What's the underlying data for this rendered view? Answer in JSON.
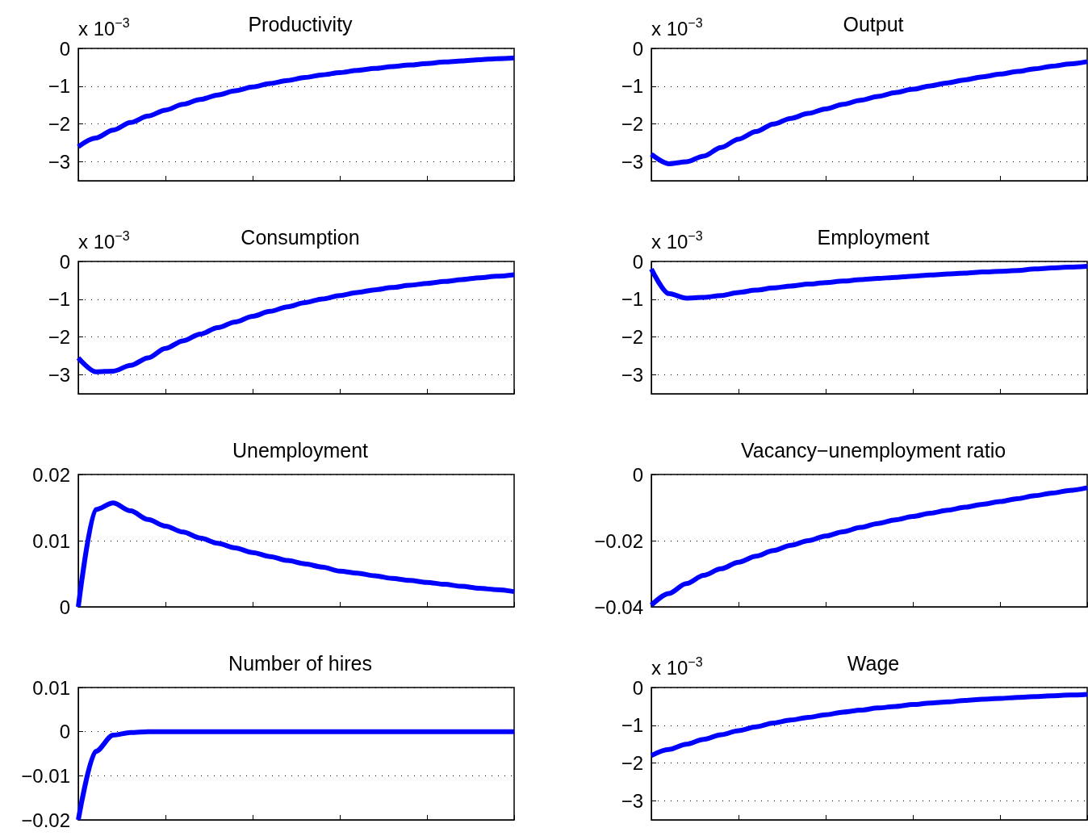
{
  "chart_data": [
    {
      "type": "line",
      "title": "Productivity",
      "annotations": [
        "x 10$^{−3}$"
      ],
      "categories": [
        null,
        null,
        null,
        null,
        null,
        null,
        null,
        null,
        null,
        null,
        null,
        null,
        null,
        null,
        null,
        null,
        null,
        null,
        null,
        null,
        null,
        null,
        null,
        null,
        null,
        null
      ],
      "series": [
        {
          "color": "#0000ff",
          "values": [
            -2.6,
            -2.37,
            -2.16,
            -1.96,
            -1.79,
            -1.63,
            -1.48,
            -1.35,
            -1.23,
            -1.12,
            -1.02,
            -0.93,
            -0.85,
            -0.77,
            -0.7,
            -0.64,
            -0.58,
            -0.53,
            -0.48,
            -0.44,
            -0.4,
            -0.36,
            -0.33,
            -0.3,
            -0.27,
            -0.25
          ]
        }
      ],
      "ylim": [
        -3.5,
        0
      ],
      "yticks": [
        {
          "value": -3,
          "label": "−3"
        },
        {
          "value": -2,
          "label": "−2"
        },
        {
          "value": -1,
          "label": "−1"
        },
        0
      ],
      "grid": "y",
      "tick_labels": "y",
      "marker": "none",
      "line_style": "solid"
    },
    {
      "type": "line",
      "title": "Output",
      "annotations": [
        "x 10$^{−3}$"
      ],
      "categories": [
        null,
        null,
        null,
        null,
        null,
        null,
        null,
        null,
        null,
        null,
        null,
        null,
        null,
        null,
        null,
        null,
        null,
        null,
        null,
        null,
        null,
        null,
        null,
        null,
        null,
        null
      ],
      "series": [
        {
          "color": "#0000ff",
          "values": [
            -2.8,
            -3.05,
            -3.0,
            -2.85,
            -2.62,
            -2.4,
            -2.2,
            -2.0,
            -1.85,
            -1.72,
            -1.6,
            -1.48,
            -1.37,
            -1.27,
            -1.17,
            -1.08,
            -0.99,
            -0.91,
            -0.83,
            -0.75,
            -0.68,
            -0.61,
            -0.54,
            -0.47,
            -0.41,
            -0.35
          ]
        }
      ],
      "ylim": [
        -3.5,
        0
      ],
      "yticks": [
        {
          "value": -3,
          "label": "−3"
        },
        {
          "value": -2,
          "label": "−2"
        },
        {
          "value": -1,
          "label": "−1"
        },
        0
      ],
      "grid": "y",
      "tick_labels": "y",
      "marker": "none",
      "line_style": "solid"
    },
    {
      "type": "line",
      "title": "Consumption",
      "annotations": [
        "x 10$^{−3}$"
      ],
      "categories": [
        null,
        null,
        null,
        null,
        null,
        null,
        null,
        null,
        null,
        null,
        null,
        null,
        null,
        null,
        null,
        null,
        null,
        null,
        null,
        null,
        null,
        null,
        null,
        null,
        null,
        null
      ],
      "series": [
        {
          "color": "#0000ff",
          "values": [
            -2.55,
            -2.92,
            -2.9,
            -2.75,
            -2.55,
            -2.3,
            -2.1,
            -1.92,
            -1.75,
            -1.6,
            -1.45,
            -1.32,
            -1.2,
            -1.09,
            -0.99,
            -0.9,
            -0.82,
            -0.75,
            -0.69,
            -0.63,
            -0.58,
            -0.53,
            -0.48,
            -0.43,
            -0.39,
            -0.35
          ]
        }
      ],
      "ylim": [
        -3.5,
        0
      ],
      "yticks": [
        {
          "value": -3,
          "label": "−3"
        },
        {
          "value": -2,
          "label": "−2"
        },
        {
          "value": -1,
          "label": "−1"
        },
        0
      ],
      "grid": "y",
      "tick_labels": "y",
      "marker": "none",
      "line_style": "solid"
    },
    {
      "type": "line",
      "title": "Employment",
      "annotations": [
        "x 10$^{−3}$"
      ],
      "categories": [
        null,
        null,
        null,
        null,
        null,
        null,
        null,
        null,
        null,
        null,
        null,
        null,
        null,
        null,
        null,
        null,
        null,
        null,
        null,
        null,
        null,
        null,
        null,
        null,
        null,
        null
      ],
      "series": [
        {
          "color": "#0000ff",
          "values": [
            -0.2,
            -0.85,
            -0.97,
            -0.95,
            -0.9,
            -0.82,
            -0.76,
            -0.7,
            -0.65,
            -0.6,
            -0.56,
            -0.52,
            -0.48,
            -0.45,
            -0.42,
            -0.39,
            -0.36,
            -0.33,
            -0.31,
            -0.28,
            -0.26,
            -0.24,
            -0.2,
            -0.17,
            -0.15,
            -0.13
          ]
        }
      ],
      "ylim": [
        -3.5,
        0
      ],
      "yticks": [
        {
          "value": -3,
          "label": "−3"
        },
        {
          "value": -2,
          "label": "−2"
        },
        {
          "value": -1,
          "label": "−1"
        },
        0
      ],
      "grid": "y",
      "tick_labels": "y",
      "marker": "none",
      "line_style": "solid"
    },
    {
      "type": "line",
      "title": "Unemployment",
      "categories": [
        null,
        null,
        null,
        null,
        null,
        null,
        null,
        null,
        null,
        null,
        null,
        null,
        null,
        null,
        null,
        null,
        null,
        null,
        null,
        null,
        null,
        null,
        null,
        null,
        null,
        null
      ],
      "series": [
        {
          "color": "#0000ff",
          "values": [
            0,
            0.0147,
            0.0157,
            0.0145,
            0.0132,
            0.0122,
            0.0113,
            0.0104,
            0.0096,
            0.0089,
            0.0082,
            0.0076,
            0.007,
            0.0065,
            0.006,
            0.0054,
            0.0051,
            0.0047,
            0.0043,
            0.004,
            0.0037,
            0.0034,
            0.0031,
            0.0028,
            0.0026,
            0.0023
          ]
        }
      ],
      "ylim": [
        0,
        0.02
      ],
      "yticks": [
        0,
        0.01,
        0.02
      ],
      "grid": "y",
      "tick_labels": "y",
      "marker": "none",
      "line_style": "solid"
    },
    {
      "type": "line",
      "title": "Vacancy−unemployment ratio",
      "categories": [
        null,
        null,
        null,
        null,
        null,
        null,
        null,
        null,
        null,
        null,
        null,
        null,
        null,
        null,
        null,
        null,
        null,
        null,
        null,
        null,
        null,
        null,
        null,
        null,
        null,
        null
      ],
      "series": [
        {
          "color": "#0000ff",
          "values": [
            -0.0395,
            -0.036,
            -0.033,
            -0.0305,
            -0.0285,
            -0.0265,
            -0.0247,
            -0.023,
            -0.0214,
            -0.02,
            -0.0186,
            -0.0173,
            -0.016,
            -0.0148,
            -0.0137,
            -0.0127,
            -0.0117,
            -0.0108,
            -0.0099,
            -0.009,
            -0.0082,
            -0.0073,
            -0.0064,
            -0.0056,
            -0.0048,
            -0.004
          ]
        }
      ],
      "ylim": [
        -0.04,
        0
      ],
      "yticks": [
        {
          "value": -0.04,
          "label": "−0.04"
        },
        {
          "value": -0.02,
          "label": "−0.02"
        },
        0
      ],
      "grid": "y",
      "tick_labels": "y",
      "marker": "none",
      "line_style": "solid"
    },
    {
      "type": "line",
      "title": "Number of hires",
      "categories": [
        null,
        null,
        null,
        null,
        null,
        null,
        null,
        null,
        null,
        null,
        null,
        null,
        null,
        null,
        null,
        null,
        null,
        null,
        null,
        null,
        null,
        null,
        null,
        null,
        null,
        null
      ],
      "series": [
        {
          "color": "#0000ff",
          "values": [
            -0.02,
            -0.0045,
            -0.0008,
            -0.0002,
            0,
            0,
            0,
            0,
            0,
            0,
            0,
            0,
            0,
            0,
            0,
            0,
            0,
            0,
            0,
            0,
            0,
            0,
            0,
            0,
            0,
            0
          ]
        }
      ],
      "ylim": [
        -0.02,
        0.01
      ],
      "yticks": [
        {
          "value": -0.02,
          "label": "−0.02"
        },
        {
          "value": -0.01,
          "label": "−0.01"
        },
        0,
        0.01
      ],
      "grid": "y",
      "tick_labels": "y",
      "marker": "none",
      "line_style": "solid"
    },
    {
      "type": "line",
      "title": "Wage",
      "annotations": [
        "x 10$^{−3}$"
      ],
      "categories": [
        null,
        null,
        null,
        null,
        null,
        null,
        null,
        null,
        null,
        null,
        null,
        null,
        null,
        null,
        null,
        null,
        null,
        null,
        null,
        null,
        null,
        null,
        null,
        null,
        null,
        null
      ],
      "series": [
        {
          "color": "#0000ff",
          "values": [
            -1.8,
            -1.64,
            -1.5,
            -1.37,
            -1.25,
            -1.14,
            -1.04,
            -0.94,
            -0.86,
            -0.79,
            -0.72,
            -0.65,
            -0.6,
            -0.54,
            -0.5,
            -0.45,
            -0.41,
            -0.38,
            -0.34,
            -0.31,
            -0.29,
            -0.26,
            -0.24,
            -0.22,
            -0.2,
            -0.18
          ]
        }
      ],
      "ylim": [
        -3.5,
        0
      ],
      "yticks": [
        {
          "value": -3,
          "label": "−3"
        },
        {
          "value": -2,
          "label": "−2"
        },
        {
          "value": -1,
          "label": "−1"
        },
        0
      ],
      "grid": "y",
      "tick_labels": "y",
      "marker": "none",
      "line_style": "solid"
    }
  ]
}
